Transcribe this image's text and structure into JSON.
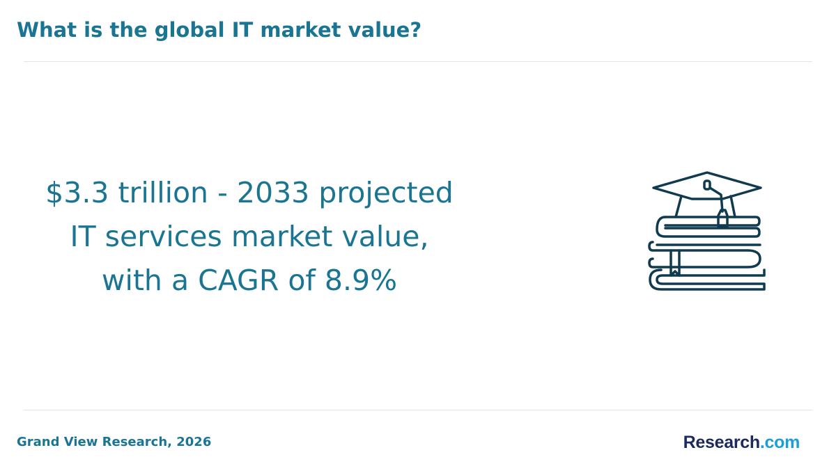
{
  "header": {
    "title": "What is the global IT market value?"
  },
  "stat": {
    "lines": [
      "$3.3 trillion - 2033 projected",
      "IT services market value,",
      "with a CAGR of 8.9%"
    ]
  },
  "icon": {
    "name": "graduation-cap-on-books-icon",
    "color": "#0f3a4f"
  },
  "footer": {
    "source": "Grand View Research, 2026",
    "logo_main": "Research",
    "logo_suffix": ".com"
  },
  "colors": {
    "accent": "#1a7593",
    "logo_dark": "#1b2a5c",
    "logo_light": "#1b9fd6",
    "divider": "#e4e4e4"
  }
}
